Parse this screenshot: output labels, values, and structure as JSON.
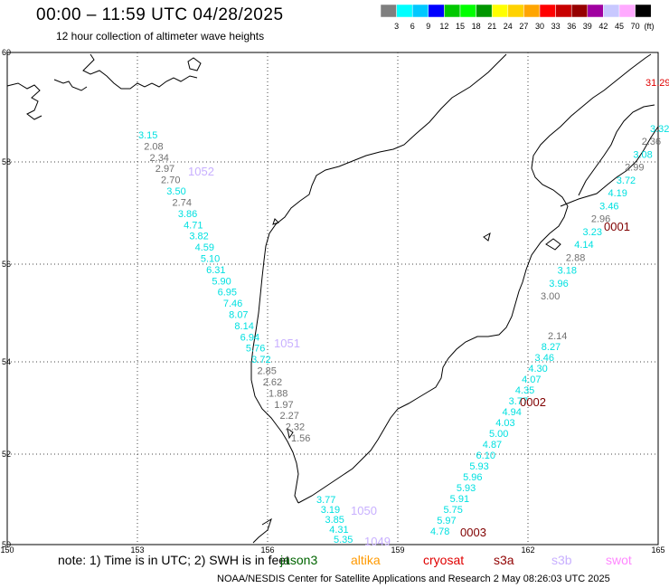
{
  "title": "00:00 – 11:59 UTC 04/28/2025",
  "subtitle": "12 hour collection of altimeter wave heights",
  "legend": {
    "unit": "(ft)",
    "colors": [
      "#7f7f7f",
      "#00ffff",
      "#00c8ff",
      "#0000ff",
      "#00c800",
      "#00ff00",
      "#009600",
      "#ffff00",
      "#ffd200",
      "#ffa500",
      "#ff0000",
      "#c80000",
      "#960000",
      "#a000a0",
      "#c8c8ff",
      "#ffaaff",
      "#000000"
    ],
    "labels": [
      "3",
      "6",
      "9",
      "12",
      "15",
      "18",
      "21",
      "24",
      "27",
      "30",
      "33",
      "36",
      "39",
      "42",
      "45",
      "70"
    ]
  },
  "axes": {
    "lon_labels": [
      "150",
      "153",
      "156",
      "159",
      "162",
      "165"
    ],
    "lat_labels": [
      "60",
      "58",
      "56",
      "54",
      "52",
      "50"
    ]
  },
  "corner_value": "31.29",
  "track_ids": [
    {
      "id": "1052",
      "color": "#c8b0ff"
    },
    {
      "id": "1051",
      "color": "#c8b0ff"
    },
    {
      "id": "1050",
      "color": "#c8b0ff"
    },
    {
      "id": "1049",
      "color": "#c8b0ff"
    },
    {
      "id": "0001",
      "color": "#800000"
    },
    {
      "id": "0002",
      "color": "#800000"
    },
    {
      "id": "0003",
      "color": "#800000"
    }
  ],
  "tracks": [
    {
      "name": "west",
      "values": [
        {
          "v": "3.15",
          "c": "#00e0e0"
        },
        {
          "v": "2.08",
          "c": "#707070"
        },
        {
          "v": "2.34",
          "c": "#707070"
        },
        {
          "v": "2.97",
          "c": "#707070"
        },
        {
          "v": "2.70",
          "c": "#707070"
        },
        {
          "v": "3.50",
          "c": "#00e0e0"
        },
        {
          "v": "2.74",
          "c": "#707070"
        },
        {
          "v": "3.86",
          "c": "#00e0e0"
        },
        {
          "v": "4.71",
          "c": "#00e0e0"
        },
        {
          "v": "3.82",
          "c": "#00e0e0"
        },
        {
          "v": "4.59",
          "c": "#00e0e0"
        },
        {
          "v": "5.10",
          "c": "#00e0e0"
        },
        {
          "v": "6.31",
          "c": "#00e0e0"
        },
        {
          "v": "5.90",
          "c": "#00e0e0"
        },
        {
          "v": "6.95",
          "c": "#00e0e0"
        },
        {
          "v": "7.46",
          "c": "#00e0e0"
        },
        {
          "v": "8.07",
          "c": "#00e0e0"
        },
        {
          "v": "8.14",
          "c": "#00e0e0"
        },
        {
          "v": "6.94",
          "c": "#00e0e0"
        },
        {
          "v": "5.76",
          "c": "#00e0e0"
        },
        {
          "v": "3.72",
          "c": "#00e0e0"
        },
        {
          "v": "2.85",
          "c": "#707070"
        },
        {
          "v": "2.62",
          "c": "#707070"
        },
        {
          "v": "1.88",
          "c": "#707070"
        },
        {
          "v": "1.97",
          "c": "#707070"
        },
        {
          "v": "2.27",
          "c": "#707070"
        },
        {
          "v": "2.32",
          "c": "#707070"
        },
        {
          "v": "1.56",
          "c": "#707070"
        }
      ]
    },
    {
      "name": "south",
      "values": [
        {
          "v": "3.77",
          "c": "#00e0e0"
        },
        {
          "v": "3.19",
          "c": "#00e0e0"
        },
        {
          "v": "3.85",
          "c": "#00e0e0"
        },
        {
          "v": "4.31",
          "c": "#00e0e0"
        },
        {
          "v": "5.35",
          "c": "#00e0e0"
        }
      ]
    },
    {
      "name": "east-north",
      "values": [
        {
          "v": "3.32",
          "c": "#00e0e0"
        },
        {
          "v": "2.36",
          "c": "#707070"
        },
        {
          "v": "3.08",
          "c": "#00e0e0"
        },
        {
          "v": "2.99",
          "c": "#707070"
        },
        {
          "v": "3.72",
          "c": "#00e0e0"
        },
        {
          "v": "4.19",
          "c": "#00e0e0"
        },
        {
          "v": "3.46",
          "c": "#00e0e0"
        },
        {
          "v": "2.96",
          "c": "#707070"
        },
        {
          "v": "3.23",
          "c": "#00e0e0"
        },
        {
          "v": "4.14",
          "c": "#00e0e0"
        },
        {
          "v": "2.88",
          "c": "#707070"
        },
        {
          "v": "3.18",
          "c": "#00e0e0"
        },
        {
          "v": "3.96",
          "c": "#00e0e0"
        },
        {
          "v": "3.00",
          "c": "#707070"
        }
      ]
    },
    {
      "name": "east-south",
      "values": [
        {
          "v": "2.14",
          "c": "#707070"
        },
        {
          "v": "8.27",
          "c": "#00e0e0"
        },
        {
          "v": "3.46",
          "c": "#00e0e0"
        },
        {
          "v": "4.30",
          "c": "#00e0e0"
        },
        {
          "v": "4.07",
          "c": "#00e0e0"
        },
        {
          "v": "4.35",
          "c": "#00e0e0"
        },
        {
          "v": "3.77",
          "c": "#00e0e0"
        },
        {
          "v": "4.94",
          "c": "#00e0e0"
        },
        {
          "v": "4.03",
          "c": "#00e0e0"
        },
        {
          "v": "5.00",
          "c": "#00e0e0"
        },
        {
          "v": "4.87",
          "c": "#00e0e0"
        },
        {
          "v": "6.10",
          "c": "#00e0e0"
        },
        {
          "v": "5.93",
          "c": "#00e0e0"
        },
        {
          "v": "5.96",
          "c": "#00e0e0"
        },
        {
          "v": "5.93",
          "c": "#00e0e0"
        },
        {
          "v": "5.91",
          "c": "#00e0e0"
        },
        {
          "v": "5.75",
          "c": "#00e0e0"
        },
        {
          "v": "5.97",
          "c": "#00e0e0"
        },
        {
          "v": "4.78",
          "c": "#00e0e0"
        }
      ]
    }
  ],
  "note": "note: 1) Time is in UTC; 2) SWH is in feet",
  "satellites": [
    {
      "name": "jason3",
      "color": "#006400"
    },
    {
      "name": "altika",
      "color": "#ff9900"
    },
    {
      "name": "cryosat",
      "color": "#e00000"
    },
    {
      "name": "s3a",
      "color": "#900000"
    },
    {
      "name": "s3b",
      "color": "#c8b0ff"
    },
    {
      "name": "swot",
      "color": "#ff88ff"
    }
  ],
  "footer": "NOAA/NESDIS Center for Satellite Applications and Research    2 May 08:26:03 UTC 2025"
}
